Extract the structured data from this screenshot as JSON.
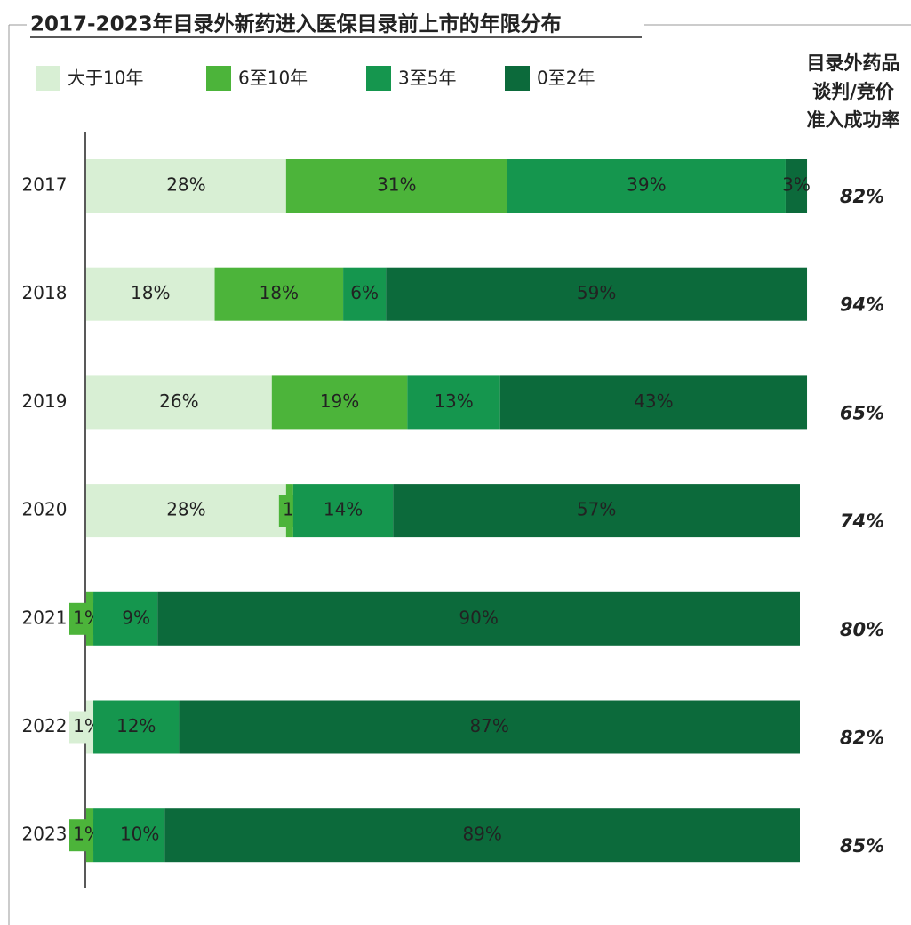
{
  "chart_data": {
    "type": "stacked_barh",
    "title": "2017-2023年目录外新药进入医保目录前上市的年限分布",
    "categories": [
      "2017",
      "2018",
      "2019",
      "2020",
      "2021",
      "2022",
      "2023"
    ],
    "xlim": [
      0,
      100
    ],
    "series": [
      {
        "name": "大于10年",
        "color": "#d8efd4",
        "values": [
          28,
          18,
          26,
          28,
          0,
          1,
          0
        ],
        "value_labels": [
          "28%",
          "18%",
          "26%",
          "28%",
          null,
          "1%",
          null
        ]
      },
      {
        "name": "6至10年",
        "color": "#4cb43a",
        "values": [
          31,
          18,
          19,
          1,
          1,
          0,
          1
        ],
        "value_labels": [
          "31%",
          "18%",
          "19%",
          "1%",
          "1%",
          null,
          "1%"
        ]
      },
      {
        "name": "3至5年",
        "color": "#15964e",
        "values": [
          39,
          6,
          13,
          14,
          9,
          12,
          10
        ],
        "value_labels": [
          "39%",
          "6%",
          "13%",
          "14%",
          "9%",
          "12%",
          "10%"
        ]
      },
      {
        "name": "0至2年",
        "color": "#0c6a3b",
        "values": [
          3,
          59,
          43,
          57,
          90,
          87,
          89
        ],
        "value_labels": [
          "3%",
          "59%",
          "43%",
          "57%",
          "90%",
          "87%",
          "89%"
        ]
      }
    ],
    "success_rate": {
      "title_lines": [
        "目录外药品",
        "谈判/竞价",
        "准入成功率"
      ],
      "color": "#1d6a56",
      "values": [
        82,
        94,
        65,
        74,
        80,
        82,
        85
      ],
      "value_labels": [
        "82%",
        "94%",
        "65%",
        "74%",
        "80%",
        "82%",
        "85%"
      ]
    }
  }
}
